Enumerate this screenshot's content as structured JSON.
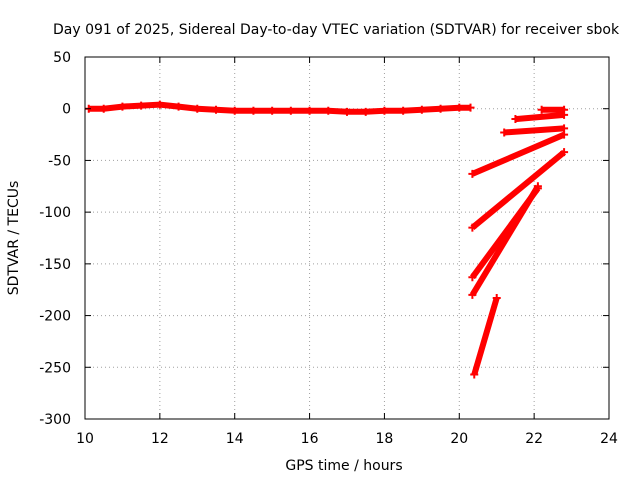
{
  "chart_data": {
    "type": "scatter",
    "title": "Day 091 of 2025, Sidereal Day-to-day VTEC variation (SDTVAR) for receiver sbok",
    "xlabel": "GPS time / hours",
    "ylabel": "SDTVAR / TECUs",
    "xlim": [
      10,
      24
    ],
    "ylim": [
      -300,
      50
    ],
    "x_ticks": [
      "10",
      "12",
      "14",
      "16",
      "18",
      "20",
      "22",
      "24"
    ],
    "y_ticks": [
      "50",
      "0",
      "-50",
      "-100",
      "-150",
      "-200",
      "-250",
      "-300"
    ],
    "x_tick_values": [
      10,
      12,
      14,
      16,
      18,
      20,
      22,
      24
    ],
    "y_tick_values": [
      50,
      0,
      -50,
      -100,
      -150,
      -200,
      -250,
      -300
    ],
    "grid": true,
    "marker": "+",
    "color": "#ff0000",
    "series": [
      {
        "x": [
          10.1,
          10.5,
          11.0,
          11.5,
          12.0,
          12.5,
          13.0,
          13.5,
          14.0,
          14.5,
          15.0,
          15.5,
          16.0,
          16.5,
          17.0,
          17.5,
          18.0,
          18.5,
          19.0,
          19.5,
          20.0,
          20.3
        ],
        "y": [
          0,
          0,
          2,
          3,
          4,
          2,
          0,
          -1,
          -2,
          -2,
          -2,
          -2,
          -2,
          -2,
          -3,
          -3,
          -2,
          -2,
          -1,
          0,
          1,
          1
        ]
      },
      {
        "x": [
          20.35,
          22.8
        ],
        "y": [
          -63,
          -25
        ]
      },
      {
        "x": [
          20.35,
          22.8
        ],
        "y": [
          -115,
          -42
        ]
      },
      {
        "x": [
          20.35,
          22.1
        ],
        "y": [
          -163,
          -77
        ]
      },
      {
        "x": [
          20.35,
          22.1
        ],
        "y": [
          -180,
          -75
        ]
      },
      {
        "x": [
          20.4,
          21.0
        ],
        "y": [
          -257,
          -183
        ]
      },
      {
        "x": [
          21.2,
          22.8
        ],
        "y": [
          -23,
          -19
        ]
      },
      {
        "x": [
          21.5,
          22.8
        ],
        "y": [
          -10,
          -6
        ]
      },
      {
        "x": [
          22.2,
          22.8
        ],
        "y": [
          -1,
          -1
        ]
      }
    ]
  }
}
